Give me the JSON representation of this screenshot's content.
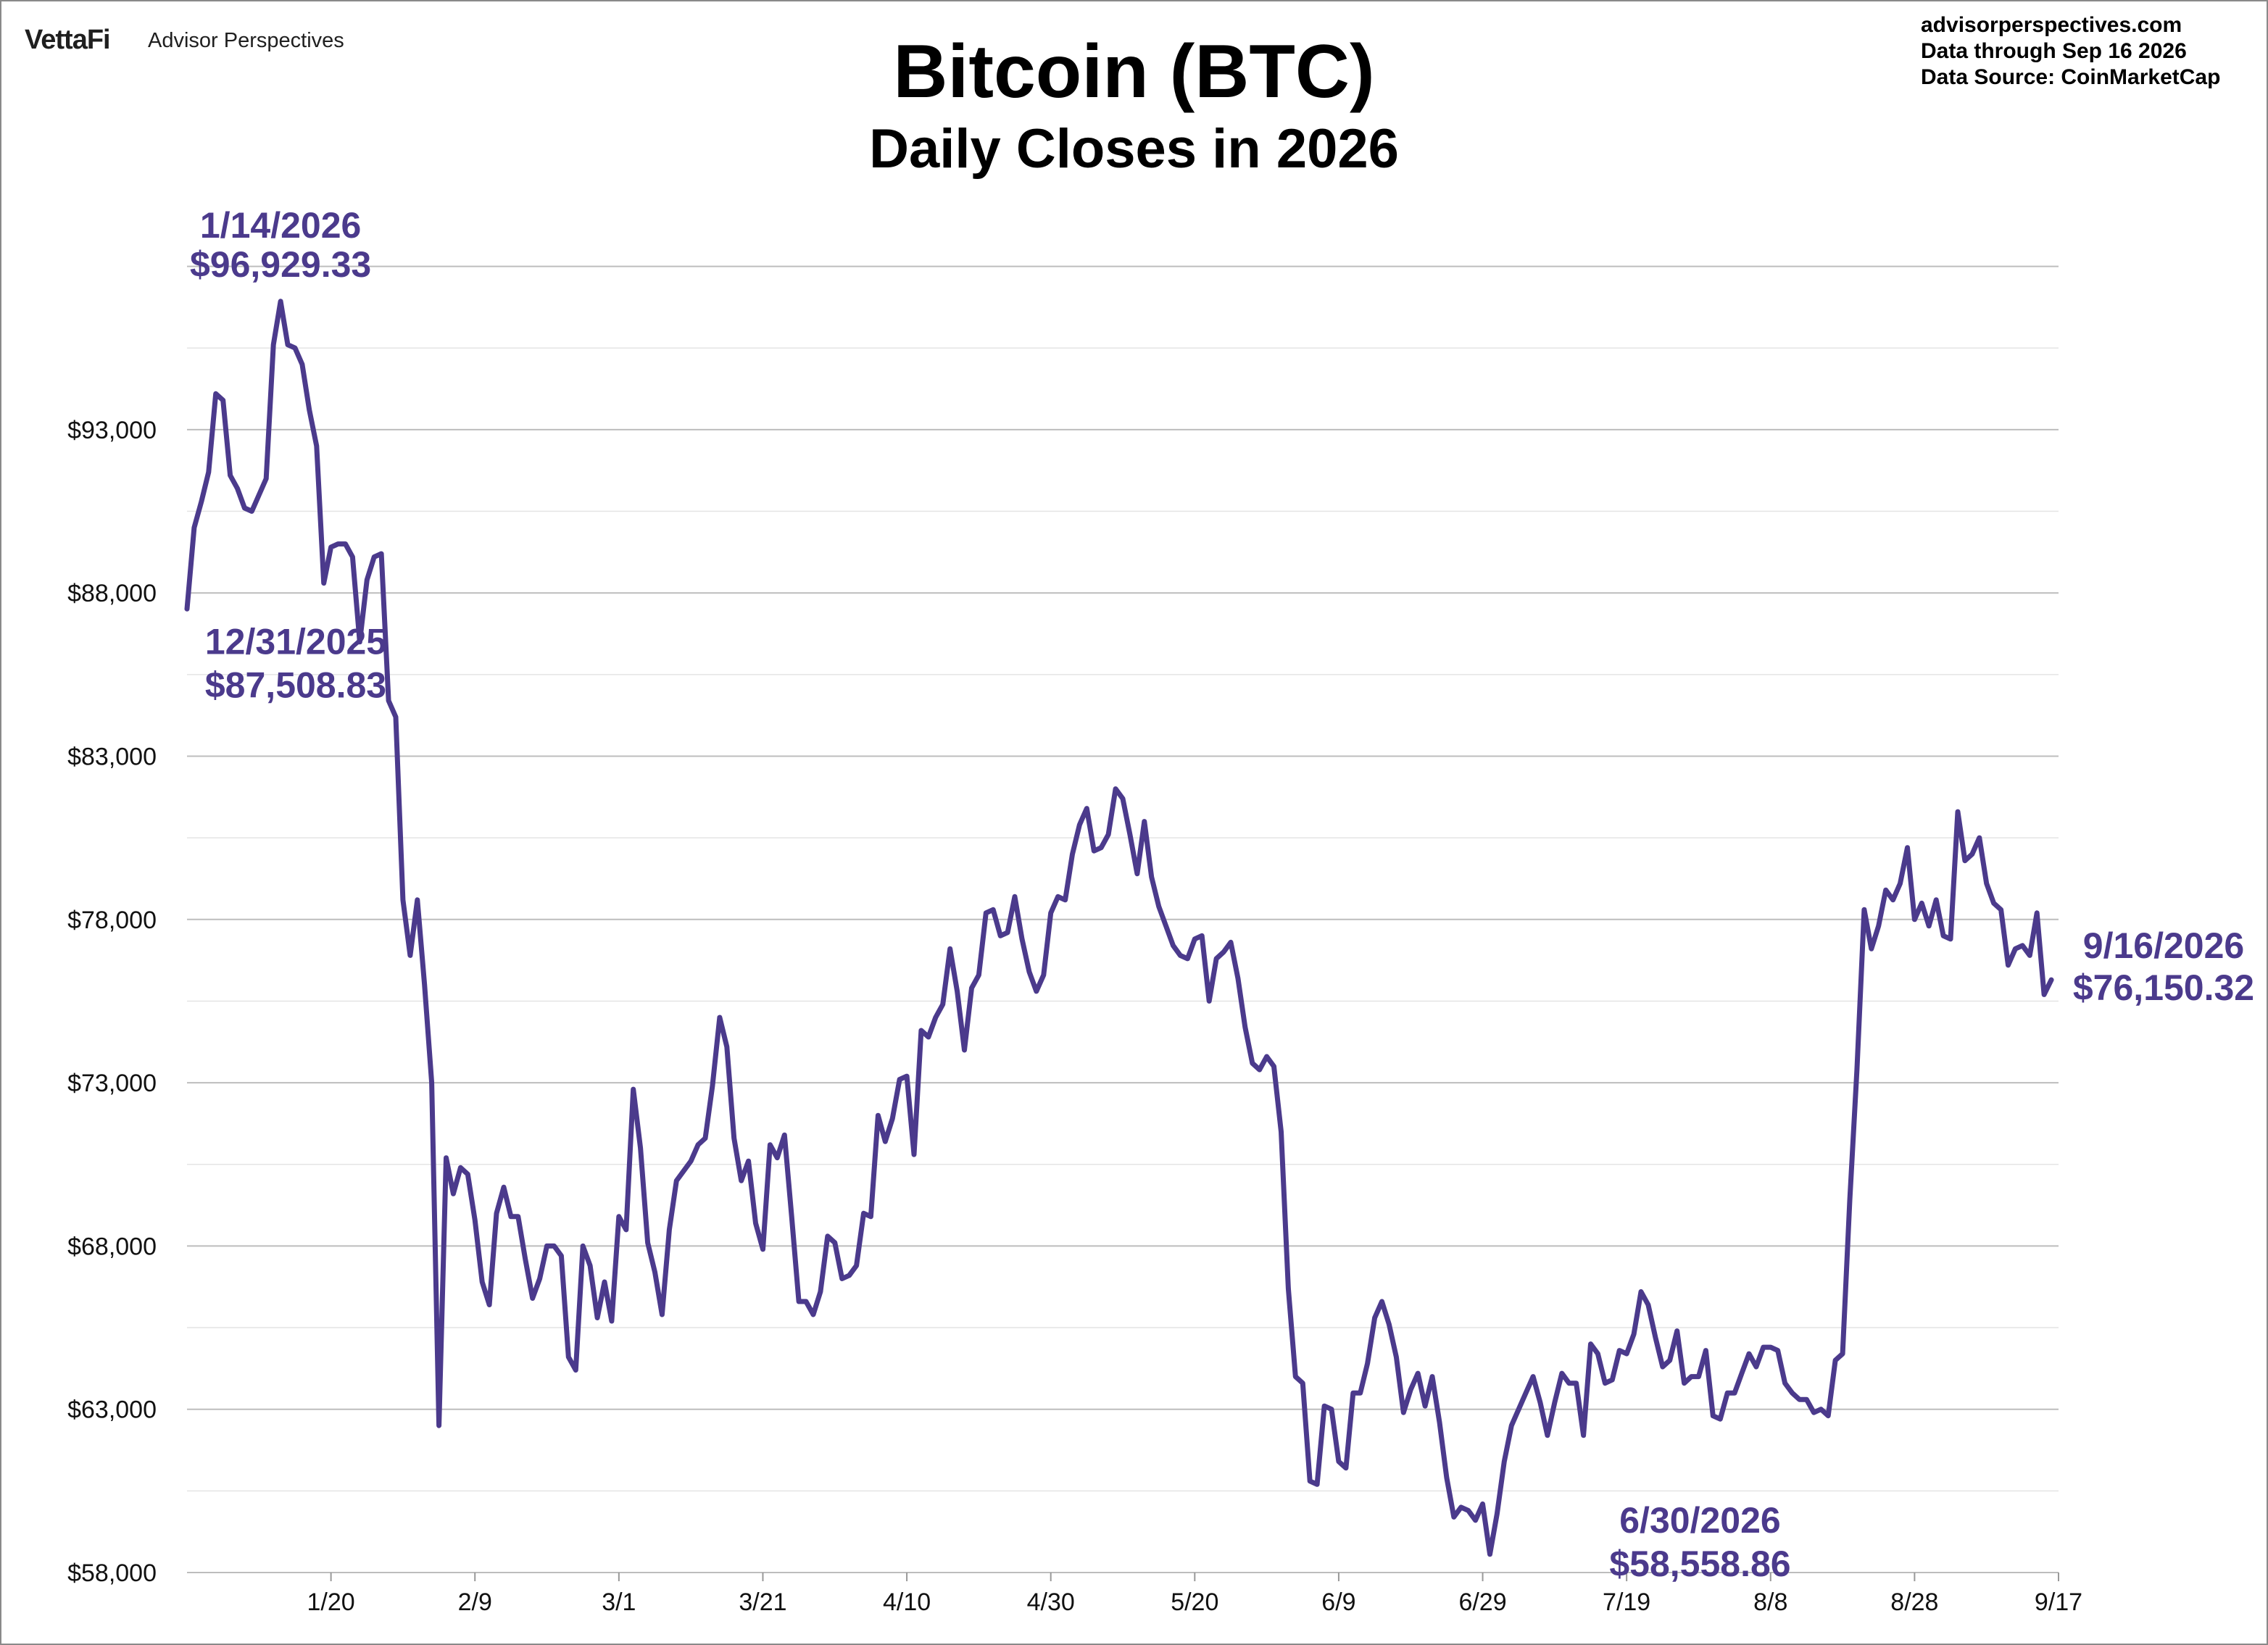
{
  "header": {
    "brand_logo": "VettaFi",
    "brand_name": "Advisor Perspectives",
    "site": "advisorperspectives.com",
    "data_through": "Data through  Sep 16 2026",
    "data_source": "Data Source:  CoinMarketCap"
  },
  "chart_data": {
    "type": "line",
    "title": "Bitcoin (BTC)",
    "subtitle": "Daily Closes in 2026",
    "xlabel": "",
    "ylabel": "",
    "ylim": [
      58000,
      99500
    ],
    "grid": true,
    "line_color": "#4b3a8c",
    "yticks": [
      {
        "value": 58000,
        "label": "$58,000"
      },
      {
        "value": 63000,
        "label": "$63,000"
      },
      {
        "value": 68000,
        "label": "$68,000"
      },
      {
        "value": 73000,
        "label": "$73,000"
      },
      {
        "value": 78000,
        "label": "$78,000"
      },
      {
        "value": 83000,
        "label": "$83,000"
      },
      {
        "value": 88000,
        "label": "$88,000"
      },
      {
        "value": 93000,
        "label": "$93,000"
      }
    ],
    "xticks": [
      {
        "day": 20,
        "label": "1/20"
      },
      {
        "day": 40,
        "label": "2/9"
      },
      {
        "day": 60,
        "label": "3/1"
      },
      {
        "day": 80,
        "label": "3/21"
      },
      {
        "day": 100,
        "label": "4/10"
      },
      {
        "day": 120,
        "label": "4/30"
      },
      {
        "day": 140,
        "label": "5/20"
      },
      {
        "day": 160,
        "label": "6/9"
      },
      {
        "day": 180,
        "label": "6/29"
      },
      {
        "day": 200,
        "label": "7/19"
      },
      {
        "day": 220,
        "label": "8/8"
      },
      {
        "day": 240,
        "label": "8/28"
      },
      {
        "day": 260,
        "label": "9/17"
      }
    ],
    "series": [
      {
        "name": "",
        "points": [
          [
            0,
            87508.83
          ],
          [
            1,
            90000
          ],
          [
            2,
            90800
          ],
          [
            3,
            91700
          ],
          [
            4,
            94100
          ],
          [
            5,
            93900
          ],
          [
            6,
            91600
          ],
          [
            7,
            91200
          ],
          [
            8,
            90600
          ],
          [
            9,
            90500
          ],
          [
            10,
            91000
          ],
          [
            11,
            91500
          ],
          [
            12,
            95600
          ],
          [
            13,
            96929.33
          ],
          [
            14,
            95600
          ],
          [
            15,
            95500
          ],
          [
            16,
            95000
          ],
          [
            17,
            93600
          ],
          [
            18,
            92500
          ],
          [
            19,
            88300
          ],
          [
            20,
            89400
          ],
          [
            21,
            89500
          ],
          [
            22,
            89500
          ],
          [
            23,
            89100
          ],
          [
            24,
            86500
          ],
          [
            25,
            88400
          ],
          [
            26,
            89100
          ],
          [
            27,
            89200
          ],
          [
            28,
            84700
          ],
          [
            29,
            84200
          ],
          [
            30,
            78600
          ],
          [
            31,
            76900
          ],
          [
            32,
            78600
          ],
          [
            33,
            76000
          ],
          [
            34,
            73000
          ],
          [
            35,
            62500
          ],
          [
            36,
            70700
          ],
          [
            37,
            69600
          ],
          [
            38,
            70400
          ],
          [
            39,
            70200
          ],
          [
            40,
            68800
          ],
          [
            41,
            66900
          ],
          [
            42,
            66200
          ],
          [
            43,
            69000
          ],
          [
            44,
            69800
          ],
          [
            45,
            68900
          ],
          [
            46,
            68900
          ],
          [
            47,
            67600
          ],
          [
            48,
            66400
          ],
          [
            49,
            67000
          ],
          [
            50,
            68000
          ],
          [
            51,
            68000
          ],
          [
            52,
            67700
          ],
          [
            53,
            64600
          ],
          [
            54,
            64200
          ],
          [
            55,
            68000
          ],
          [
            56,
            67400
          ],
          [
            57,
            65800
          ],
          [
            58,
            66900
          ],
          [
            59,
            65700
          ],
          [
            60,
            68900
          ],
          [
            61,
            68500
          ],
          [
            62,
            72800
          ],
          [
            63,
            71000
          ],
          [
            64,
            68100
          ],
          [
            65,
            67200
          ],
          [
            66,
            65900
          ],
          [
            67,
            68500
          ],
          [
            68,
            70000
          ],
          [
            69,
            70300
          ],
          [
            70,
            70600
          ],
          [
            71,
            71100
          ],
          [
            72,
            71300
          ],
          [
            73,
            72900
          ],
          [
            74,
            75000
          ],
          [
            75,
            74100
          ],
          [
            76,
            71300
          ],
          [
            77,
            70000
          ],
          [
            78,
            70600
          ],
          [
            79,
            68700
          ],
          [
            80,
            67900
          ],
          [
            81,
            71100
          ],
          [
            82,
            70700
          ],
          [
            83,
            71400
          ],
          [
            84,
            68900
          ],
          [
            85,
            66300
          ],
          [
            86,
            66300
          ],
          [
            87,
            65900
          ],
          [
            88,
            66600
          ],
          [
            89,
            68300
          ],
          [
            90,
            68100
          ],
          [
            91,
            67000
          ],
          [
            92,
            67100
          ],
          [
            93,
            67400
          ],
          [
            94,
            69000
          ],
          [
            95,
            68900
          ],
          [
            96,
            72000
          ],
          [
            97,
            71200
          ],
          [
            98,
            71900
          ],
          [
            99,
            73100
          ],
          [
            100,
            73200
          ],
          [
            101,
            70800
          ],
          [
            102,
            74600
          ],
          [
            103,
            74400
          ],
          [
            104,
            75000
          ],
          [
            105,
            75400
          ],
          [
            106,
            77100
          ],
          [
            107,
            75800
          ],
          [
            108,
            74000
          ],
          [
            109,
            75900
          ],
          [
            110,
            76300
          ],
          [
            111,
            78200
          ],
          [
            112,
            78300
          ],
          [
            113,
            77500
          ],
          [
            114,
            77600
          ],
          [
            115,
            78700
          ],
          [
            116,
            77400
          ],
          [
            117,
            76400
          ],
          [
            118,
            75800
          ],
          [
            119,
            76300
          ],
          [
            120,
            78200
          ],
          [
            121,
            78700
          ],
          [
            122,
            78600
          ],
          [
            123,
            80000
          ],
          [
            124,
            80900
          ],
          [
            125,
            81400
          ],
          [
            126,
            80100
          ],
          [
            127,
            80200
          ],
          [
            128,
            80600
          ],
          [
            129,
            82000
          ],
          [
            130,
            81700
          ],
          [
            131,
            80600
          ],
          [
            132,
            79400
          ],
          [
            133,
            81000
          ],
          [
            134,
            79300
          ],
          [
            135,
            78400
          ],
          [
            136,
            77800
          ],
          [
            137,
            77200
          ],
          [
            138,
            76900
          ],
          [
            139,
            76800
          ],
          [
            140,
            77400
          ],
          [
            141,
            77500
          ],
          [
            142,
            75500
          ],
          [
            143,
            76800
          ],
          [
            144,
            77000
          ],
          [
            145,
            77300
          ],
          [
            146,
            76200
          ],
          [
            147,
            74700
          ],
          [
            148,
            73600
          ],
          [
            149,
            73400
          ],
          [
            150,
            73800
          ],
          [
            151,
            73500
          ],
          [
            152,
            71500
          ],
          [
            153,
            66700
          ],
          [
            154,
            64000
          ],
          [
            155,
            63800
          ],
          [
            156,
            60800
          ],
          [
            157,
            60700
          ],
          [
            158,
            63100
          ],
          [
            159,
            63000
          ],
          [
            160,
            61400
          ],
          [
            161,
            61200
          ],
          [
            162,
            63500
          ],
          [
            163,
            63500
          ],
          [
            164,
            64400
          ],
          [
            165,
            65800
          ],
          [
            166,
            66300
          ],
          [
            167,
            65600
          ],
          [
            168,
            64600
          ],
          [
            169,
            62900
          ],
          [
            170,
            63600
          ],
          [
            171,
            64100
          ],
          [
            172,
            63100
          ],
          [
            173,
            64000
          ],
          [
            174,
            62600
          ],
          [
            175,
            60900
          ],
          [
            176,
            59700
          ],
          [
            177,
            60000
          ],
          [
            178,
            59900
          ],
          [
            179,
            59600
          ],
          [
            180,
            60100
          ],
          [
            181,
            58558.86
          ],
          [
            182,
            59800
          ],
          [
            183,
            61400
          ],
          [
            184,
            62500
          ],
          [
            185,
            63000
          ],
          [
            186,
            63500
          ],
          [
            187,
            64000
          ],
          [
            188,
            63200
          ],
          [
            189,
            62200
          ],
          [
            190,
            63200
          ],
          [
            191,
            64100
          ],
          [
            192,
            63800
          ],
          [
            193,
            63800
          ],
          [
            194,
            62200
          ],
          [
            195,
            65000
          ],
          [
            196,
            64700
          ],
          [
            197,
            63800
          ],
          [
            198,
            63900
          ],
          [
            199,
            64800
          ],
          [
            200,
            64700
          ],
          [
            201,
            65300
          ],
          [
            202,
            66600
          ],
          [
            203,
            66200
          ],
          [
            204,
            65200
          ],
          [
            205,
            64300
          ],
          [
            206,
            64500
          ],
          [
            207,
            65400
          ],
          [
            208,
            63800
          ],
          [
            209,
            64000
          ],
          [
            210,
            64000
          ],
          [
            211,
            64800
          ],
          [
            212,
            62800
          ],
          [
            213,
            62700
          ],
          [
            214,
            63500
          ],
          [
            215,
            63500
          ],
          [
            216,
            64100
          ],
          [
            217,
            64700
          ],
          [
            218,
            64300
          ],
          [
            219,
            64900
          ],
          [
            220,
            64900
          ],
          [
            221,
            64800
          ],
          [
            222,
            63800
          ],
          [
            223,
            63500
          ],
          [
            224,
            63300
          ],
          [
            225,
            63300
          ],
          [
            226,
            62900
          ],
          [
            227,
            63000
          ],
          [
            228,
            62800
          ],
          [
            229,
            64500
          ],
          [
            230,
            64700
          ],
          [
            231,
            69400
          ],
          [
            232,
            73400
          ],
          [
            233,
            78300
          ],
          [
            234,
            77100
          ],
          [
            235,
            77800
          ],
          [
            236,
            78900
          ],
          [
            237,
            78600
          ],
          [
            238,
            79100
          ],
          [
            239,
            80200
          ],
          [
            240,
            78000
          ],
          [
            241,
            78500
          ],
          [
            242,
            77800
          ],
          [
            243,
            78600
          ],
          [
            244,
            77500
          ],
          [
            245,
            77400
          ],
          [
            246,
            81300
          ],
          [
            247,
            79800
          ],
          [
            248,
            80000
          ],
          [
            249,
            80500
          ],
          [
            250,
            79100
          ],
          [
            251,
            78500
          ],
          [
            252,
            78300
          ],
          [
            253,
            76600
          ],
          [
            254,
            77100
          ],
          [
            255,
            77200
          ],
          [
            256,
            76900
          ],
          [
            257,
            78200
          ],
          [
            258,
            75700
          ],
          [
            259,
            76150.32
          ]
        ]
      }
    ],
    "annotations": [
      {
        "day": 13,
        "value": 96929.33,
        "date": "1/14/2026",
        "price": "$96,929.33",
        "anchor": "above"
      },
      {
        "day": 0,
        "value": 87508.83,
        "date": "12/31/2025",
        "price": "$87,508.83",
        "anchor": "below"
      },
      {
        "day": 181,
        "value": 58558.86,
        "date": "6/30/2026",
        "price": "$58,558.86",
        "anchor": "right"
      },
      {
        "day": 259,
        "value": 76150.32,
        "date": "9/16/2026",
        "price": "$76,150.32",
        "anchor": "end"
      }
    ]
  }
}
